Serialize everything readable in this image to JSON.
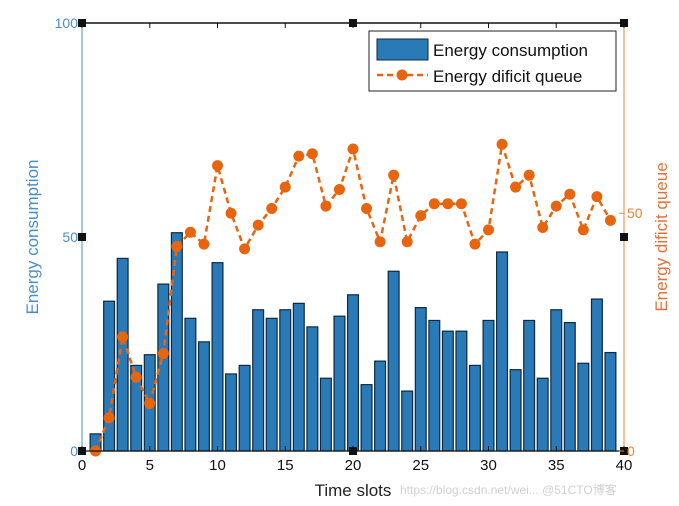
{
  "chart_data": {
    "type": "bar+line",
    "xlabel": "Time slots",
    "ylabel_left": "Energy consumption",
    "ylabel_right": "Energy dificit queue",
    "xlim": [
      0,
      40
    ],
    "ylim_left": [
      0,
      100
    ],
    "ylim_right": [
      0,
      90
    ],
    "xticks": [
      0,
      5,
      10,
      15,
      20,
      25,
      30,
      35,
      40
    ],
    "yticks_left": [
      0,
      50,
      100
    ],
    "yticks_right": [
      0,
      50
    ],
    "grid": false,
    "legend_placement": "top-right",
    "colors": {
      "bars": "#2a7ab8",
      "bar_edge": "#0d2a40",
      "line": "#e8650f",
      "left_axis": "#4a8fc4",
      "right_axis": "#e0873c"
    },
    "x": [
      1,
      2,
      3,
      4,
      5,
      6,
      7,
      8,
      9,
      10,
      11,
      12,
      13,
      14,
      15,
      16,
      17,
      18,
      19,
      20,
      21,
      22,
      23,
      24,
      25,
      26,
      27,
      28,
      29,
      30,
      31,
      32,
      33,
      34,
      35,
      36,
      37,
      38,
      39
    ],
    "series": [
      {
        "name": "Energy consumption",
        "type": "bar",
        "axis": "left",
        "values": [
          4,
          35,
          45,
          20,
          22.5,
          39,
          51,
          31,
          25.5,
          44,
          18,
          20,
          33,
          31,
          33,
          34.5,
          29,
          17,
          31.5,
          36.5,
          15.5,
          21,
          42,
          14,
          33.5,
          30.5,
          28,
          28,
          20,
          30.5,
          46.5,
          19,
          30.5,
          17,
          33,
          30,
          20.5,
          35.5,
          23
        ]
      },
      {
        "name": "Energy dificit queue",
        "type": "line",
        "axis": "right",
        "style": "dashed with circle markers",
        "values": [
          0,
          7,
          24,
          15.5,
          10,
          20.5,
          43,
          46,
          43.5,
          60,
          50,
          42.5,
          47.5,
          51,
          55.5,
          62,
          62.5,
          51.5,
          55,
          63.5,
          51,
          44,
          58,
          44,
          49.5,
          52,
          52,
          52,
          43.5,
          46.5,
          64.5,
          55.5,
          58,
          47,
          51.5,
          54,
          46.5,
          53.5,
          48.5
        ]
      }
    ]
  },
  "watermark": "https://blog.csdn.net/wei... @51CTO博客"
}
